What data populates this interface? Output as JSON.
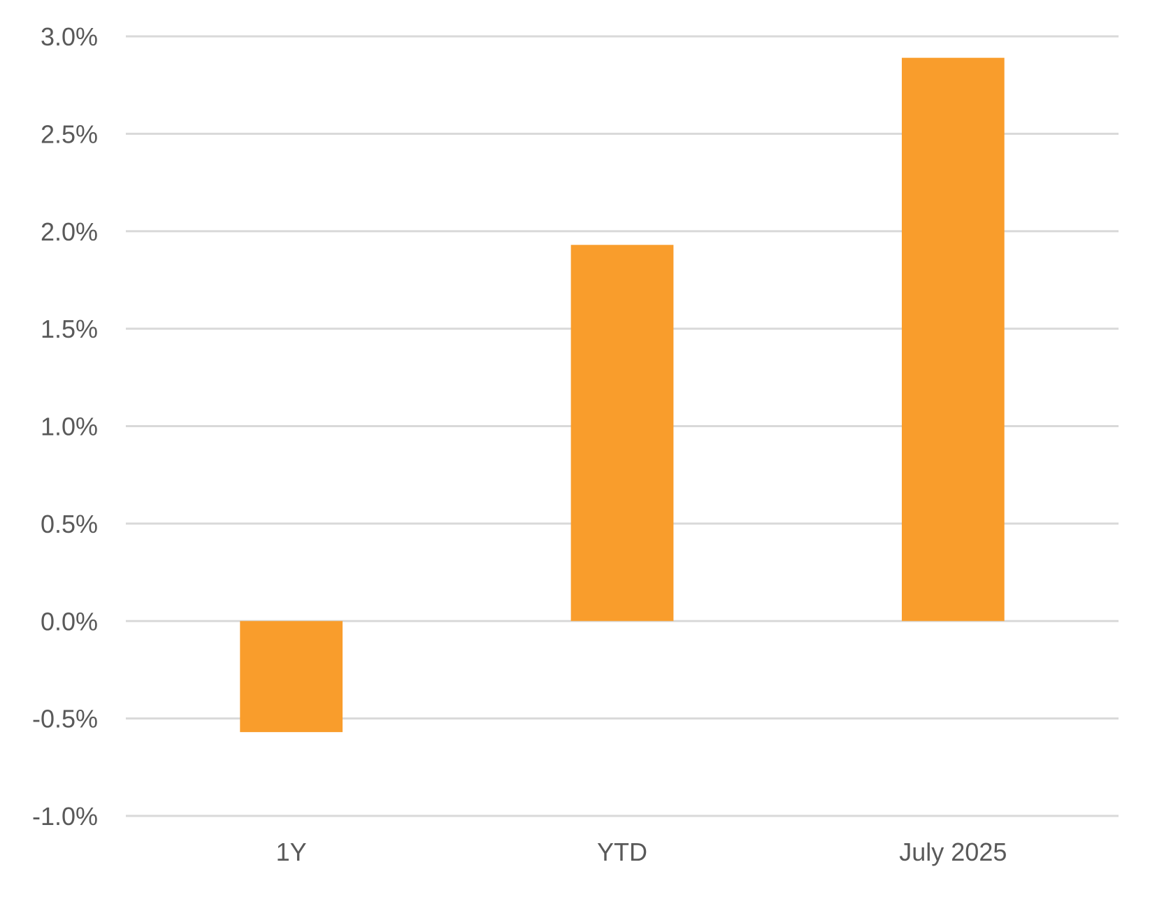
{
  "chart_data": {
    "type": "bar",
    "categories": [
      "1Y",
      "YTD",
      "July 2025"
    ],
    "values": [
      -0.57,
      1.93,
      2.89
    ],
    "value_format": "percent",
    "ylim": [
      -1.0,
      3.0
    ],
    "yticks": [
      -1.0,
      -0.5,
      0.0,
      0.5,
      1.0,
      1.5,
      2.0,
      2.5,
      3.0
    ],
    "ytick_labels": [
      "-1.0%",
      "-0.5%",
      "0.0%",
      "0.5%",
      "1.0%",
      "1.5%",
      "2.0%",
      "2.5%",
      "3.0%"
    ],
    "title": "",
    "xlabel": "",
    "ylabel": "",
    "grid": "horizontal",
    "legend": "none",
    "colors": {
      "bar": "#F99D2C",
      "grid": "#D9D9D9",
      "text": "#595959"
    }
  }
}
